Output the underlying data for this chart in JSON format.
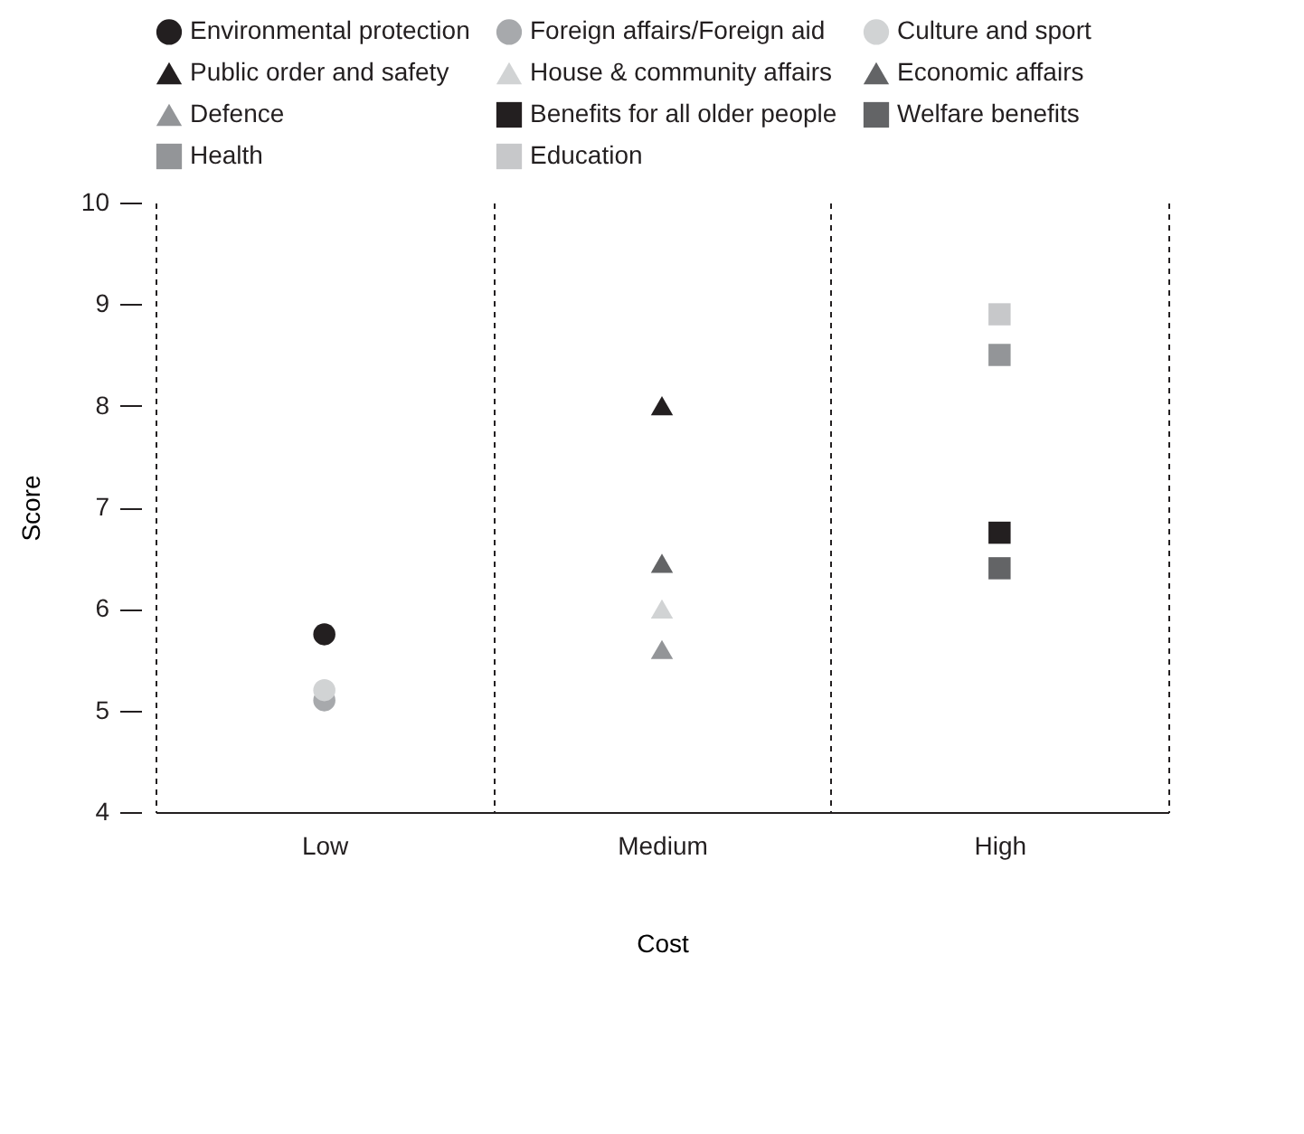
{
  "chart_data": {
    "type": "scatter",
    "xlabel": "Cost",
    "ylabel": "Score",
    "categories": [
      "Low",
      "Medium",
      "High"
    ],
    "ylim": [
      4,
      10
    ],
    "yticks": [
      4,
      5,
      6,
      7,
      8,
      9,
      10
    ],
    "grid": "x",
    "legend": "top",
    "series": [
      {
        "name": "Environmental protection",
        "color": "#231f20",
        "marker": "circle",
        "x": [
          "Low"
        ],
        "values": [
          5.75
        ]
      },
      {
        "name": "Foreign affairs/Foreign aid",
        "color": "#a7a9ac",
        "marker": "circle",
        "x": [
          "Low"
        ],
        "values": [
          5.1
        ]
      },
      {
        "name": "Culture and sport",
        "color": "#d1d3d4",
        "marker": "circle",
        "x": [
          "Low"
        ],
        "values": [
          5.2
        ]
      },
      {
        "name": "Public order and safety",
        "color": "#231f20",
        "marker": "triangle",
        "x": [
          "Medium"
        ],
        "values": [
          8.0
        ]
      },
      {
        "name": "House & community affairs",
        "color": "#d1d3d4",
        "marker": "triangle",
        "x": [
          "Medium"
        ],
        "values": [
          6.0
        ]
      },
      {
        "name": "Economic affairs",
        "color": "#636466",
        "marker": "triangle",
        "x": [
          "Medium"
        ],
        "values": [
          6.45
        ]
      },
      {
        "name": "Defence",
        "color": "#939598",
        "marker": "triangle",
        "x": [
          "Medium"
        ],
        "values": [
          5.6
        ]
      },
      {
        "name": "Benefits for all older people",
        "color": "#231f20",
        "marker": "square",
        "x": [
          "High"
        ],
        "values": [
          6.75
        ]
      },
      {
        "name": "Welfare benefits",
        "color": "#636466",
        "marker": "square",
        "x": [
          "High"
        ],
        "values": [
          6.4
        ]
      },
      {
        "name": "Health",
        "color": "#939598",
        "marker": "square",
        "x": [
          "High"
        ],
        "values": [
          8.5
        ]
      },
      {
        "name": "Education",
        "color": "#c7c8ca",
        "marker": "square",
        "x": [
          "High"
        ],
        "values": [
          8.9
        ]
      }
    ]
  }
}
